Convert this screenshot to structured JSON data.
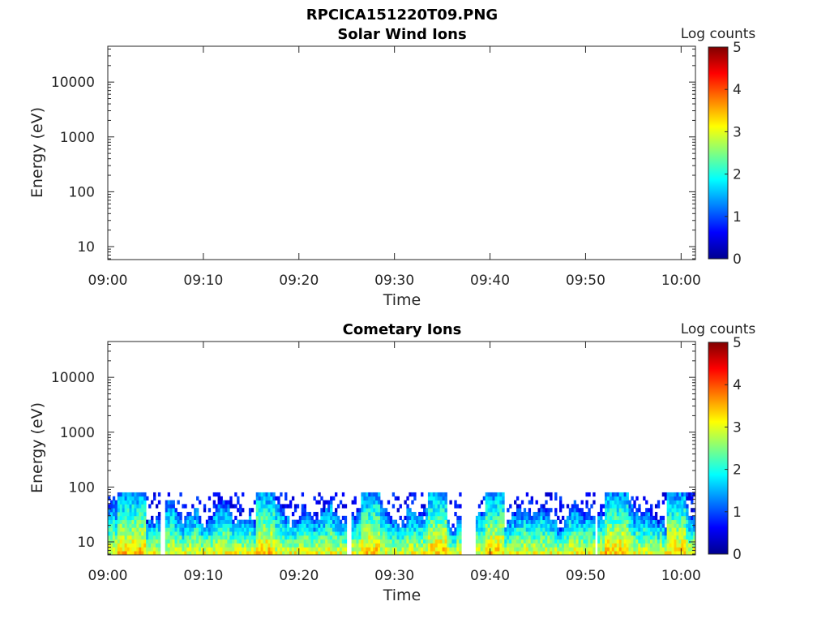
{
  "figure": {
    "title": "RPCICA151220T09.PNG"
  },
  "colorscale": [
    "#00008f",
    "#0000ff",
    "#0080ff",
    "#00ffff",
    "#80ff80",
    "#ffff00",
    "#ff8000",
    "#ff0000",
    "#800000"
  ],
  "chart_data": [
    {
      "type": "heatmap",
      "title": "Solar Wind Ions",
      "xlabel": "Time",
      "ylabel": "Energy (eV)",
      "x_ticks": [
        "09:00",
        "09:10",
        "09:20",
        "09:30",
        "09:40",
        "09:50",
        "10:00"
      ],
      "x_tick_minutes": [
        0,
        10,
        20,
        30,
        40,
        50,
        60
      ],
      "xlim_minutes": [
        0,
        61.5
      ],
      "y_scale": "log",
      "y_ticks": [
        "10",
        "100",
        "1000",
        "10000"
      ],
      "y_tick_values": [
        10,
        100,
        1000,
        10000
      ],
      "ylim": [
        5.8,
        45000
      ],
      "colorbar": {
        "label": "Log counts",
        "ticks": [
          "0",
          "1",
          "2",
          "3",
          "4",
          "5"
        ],
        "range": [
          0,
          5
        ]
      },
      "data": "empty"
    },
    {
      "type": "heatmap",
      "title": "Cometary Ions",
      "xlabel": "Time",
      "ylabel": "Energy (eV)",
      "x_ticks": [
        "09:00",
        "09:10",
        "09:20",
        "09:30",
        "09:40",
        "09:50",
        "10:00"
      ],
      "x_tick_minutes": [
        0,
        10,
        20,
        30,
        40,
        50,
        60
      ],
      "xlim_minutes": [
        0,
        61.5
      ],
      "y_scale": "log",
      "y_ticks": [
        "10",
        "100",
        "1000",
        "10000"
      ],
      "y_tick_values": [
        10,
        100,
        1000,
        10000
      ],
      "ylim": [
        5.8,
        45000
      ],
      "colorbar": {
        "label": "Log counts",
        "ticks": [
          "0",
          "1",
          "2",
          "3",
          "4",
          "5"
        ],
        "range": [
          0,
          5
        ]
      },
      "data_energy_range_eV": [
        5.8,
        80
      ],
      "data_time_range_minutes": [
        0,
        61.5
      ],
      "typical_log_counts_low_energy": 3,
      "typical_log_counts_high_energy": 1,
      "gaps_minutes": [
        [
          5.5,
          5.9
        ],
        [
          25.1,
          25.5
        ],
        [
          37.0,
          38.6
        ],
        [
          51.1,
          51.3
        ]
      ],
      "intense_bursts_minutes": [
        [
          1.0,
          4.0
        ],
        [
          15.5,
          17.5
        ],
        [
          26.5,
          28.5
        ],
        [
          33.5,
          35.5
        ],
        [
          39.5,
          41.5
        ],
        [
          52.0,
          54.5
        ],
        [
          58.5,
          60.5
        ]
      ]
    }
  ]
}
